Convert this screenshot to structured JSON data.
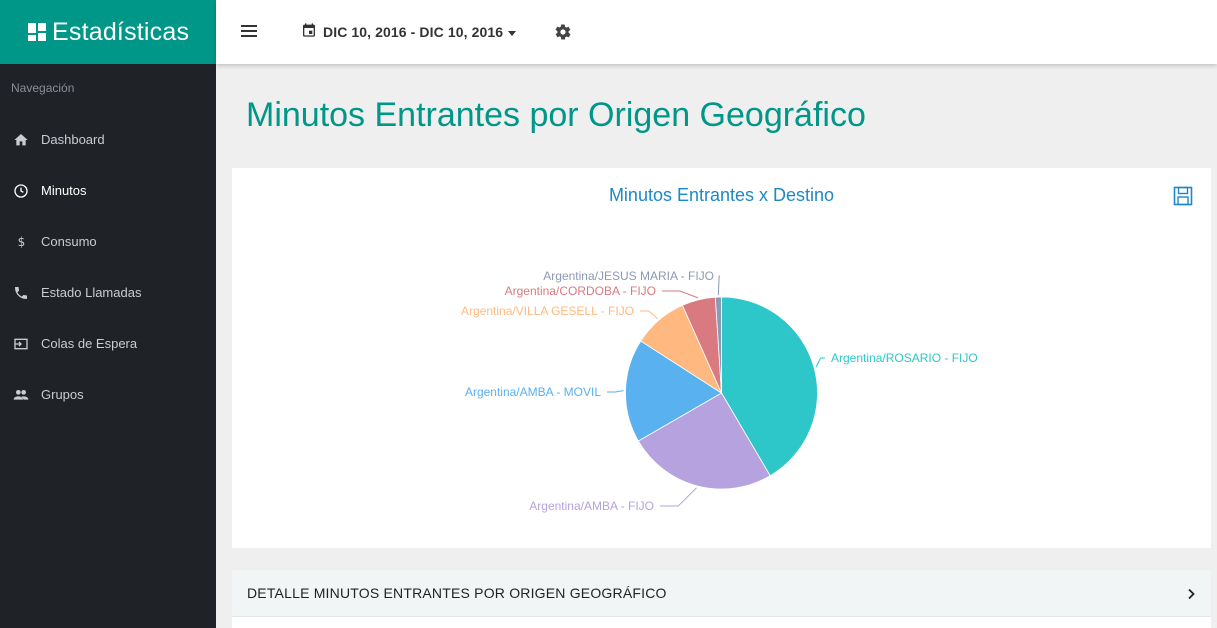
{
  "brand": {
    "title": "Estadísticas"
  },
  "sidebar": {
    "heading": "Navegación",
    "items": [
      {
        "label": "Dashboard",
        "icon": "home-icon"
      },
      {
        "label": "Minutos",
        "icon": "clock-icon",
        "active": true
      },
      {
        "label": "Consumo",
        "icon": "dollar-icon"
      },
      {
        "label": "Estado Llamadas",
        "icon": "phone-icon"
      },
      {
        "label": "Colas de Espera",
        "icon": "queue-icon"
      },
      {
        "label": "Grupos",
        "icon": "group-icon"
      }
    ]
  },
  "topbar": {
    "date_range": "DIC 10, 2016 - DIC 10, 2016"
  },
  "page": {
    "title": "Minutos Entrantes por Origen Geográfico"
  },
  "chart_data": {
    "type": "pie",
    "title": "Minutos Entrantes x Destino",
    "slices": [
      {
        "label": "Argentina/ROSARIO - FIJO",
        "value": 40.5,
        "color": "#2ec7c9"
      },
      {
        "label": "Argentina/AMBA - FIJO",
        "value": 24.5,
        "color": "#b6a2de"
      },
      {
        "label": "Argentina/AMBA - MOVIL",
        "value": 17.0,
        "color": "#5ab1ef"
      },
      {
        "label": "Argentina/VILLA GESELL - FIJO",
        "value": 9.0,
        "color": "#ffb980"
      },
      {
        "label": "Argentina/CORDOBA - FIJO",
        "value": 5.5,
        "color": "#d87a80"
      },
      {
        "label": "Argentina/JESUS MARIA - FIJO",
        "value": 1.0,
        "color": "#8d98b3"
      }
    ]
  },
  "detail": {
    "label": "DETALLE MINUTOS ENTRANTES POR ORIGEN GEOGRÁFICO"
  },
  "colors": {
    "accent": "#009688",
    "sidebar": "#1f2227",
    "chart_title": "#1e88c7"
  }
}
